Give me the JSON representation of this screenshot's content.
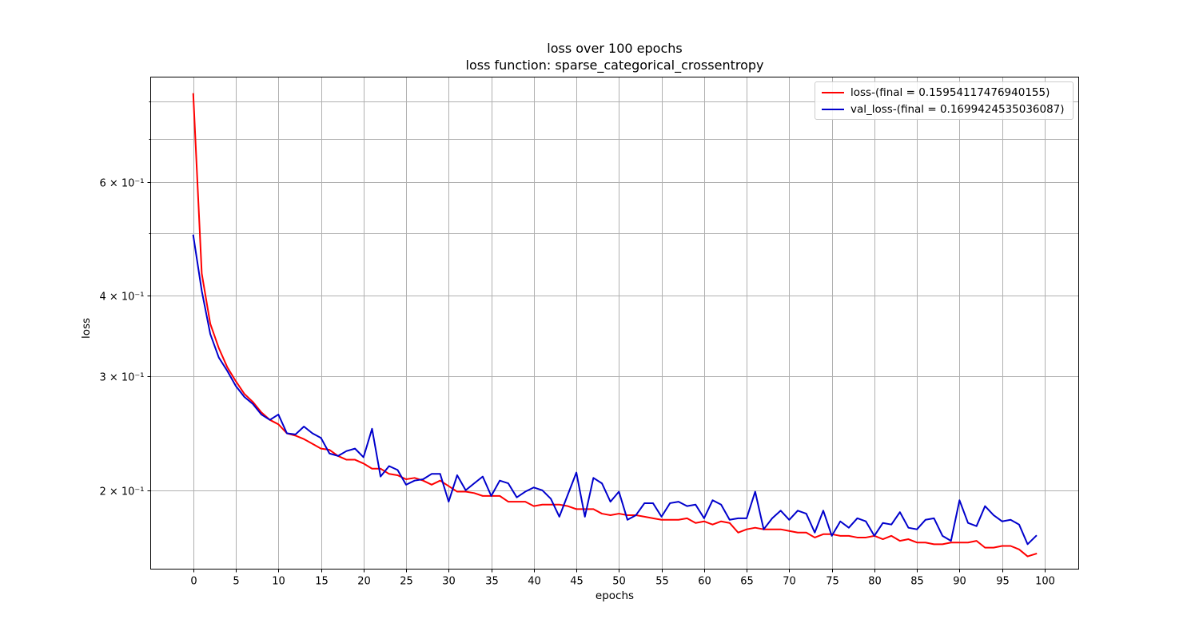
{
  "chart_data": {
    "type": "line",
    "title": "loss over 100 epochs",
    "subtitle": "loss function: sparse_categorical_crossentropy",
    "xlabel": "epochs",
    "ylabel": "loss",
    "yscale": "log",
    "xlim": [
      -5,
      104
    ],
    "ylim": [
      0.151,
      0.872
    ],
    "grid": true,
    "legend_position": "top-right",
    "x_ticks": [
      0,
      5,
      10,
      15,
      20,
      25,
      30,
      35,
      40,
      45,
      50,
      55,
      60,
      65,
      70,
      75,
      80,
      85,
      90,
      95,
      100
    ],
    "y_major_ticks": [
      {
        "value": 0.2,
        "label": "2 × 10⁻¹"
      },
      {
        "value": 0.3,
        "label": "3 × 10⁻¹"
      },
      {
        "value": 0.4,
        "label": "4 × 10⁻¹"
      },
      {
        "value": 0.6,
        "label": "6 × 10⁻¹"
      }
    ],
    "y_minor_ticks": [
      0.5,
      0.7,
      0.8
    ],
    "series": [
      {
        "name": "loss-(final = 0.15954117476940155)",
        "color": "#ff0000",
        "values": [
          0.821,
          0.433,
          0.362,
          0.332,
          0.31,
          0.295,
          0.282,
          0.274,
          0.264,
          0.257,
          0.253,
          0.245,
          0.243,
          0.24,
          0.236,
          0.232,
          0.231,
          0.226,
          0.223,
          0.223,
          0.22,
          0.216,
          0.216,
          0.212,
          0.211,
          0.208,
          0.209,
          0.207,
          0.204,
          0.207,
          0.203,
          0.199,
          0.199,
          0.198,
          0.196,
          0.196,
          0.196,
          0.192,
          0.192,
          0.192,
          0.189,
          0.19,
          0.19,
          0.19,
          0.189,
          0.187,
          0.187,
          0.187,
          0.184,
          0.183,
          0.184,
          0.183,
          0.183,
          0.182,
          0.181,
          0.18,
          0.18,
          0.18,
          0.181,
          0.178,
          0.179,
          0.177,
          0.179,
          0.178,
          0.172,
          0.174,
          0.175,
          0.174,
          0.174,
          0.174,
          0.173,
          0.172,
          0.172,
          0.169,
          0.171,
          0.171,
          0.17,
          0.17,
          0.169,
          0.169,
          0.17,
          0.168,
          0.17,
          0.167,
          0.168,
          0.166,
          0.166,
          0.165,
          0.165,
          0.166,
          0.166,
          0.166,
          0.167,
          0.163,
          0.163,
          0.164,
          0.164,
          0.162,
          0.158,
          0.1595
        ]
      },
      {
        "name": "val_loss-(final = 0.1699424535036087)",
        "color": "#0000cc",
        "values": [
          0.496,
          0.407,
          0.349,
          0.321,
          0.306,
          0.29,
          0.279,
          0.272,
          0.262,
          0.257,
          0.262,
          0.245,
          0.244,
          0.251,
          0.245,
          0.241,
          0.228,
          0.226,
          0.23,
          0.232,
          0.225,
          0.249,
          0.21,
          0.218,
          0.215,
          0.204,
          0.207,
          0.208,
          0.212,
          0.212,
          0.192,
          0.211,
          0.2,
          0.205,
          0.21,
          0.196,
          0.207,
          0.205,
          0.195,
          0.199,
          0.202,
          0.2,
          0.194,
          0.182,
          0.197,
          0.213,
          0.182,
          0.209,
          0.205,
          0.192,
          0.199,
          0.18,
          0.183,
          0.191,
          0.191,
          0.182,
          0.191,
          0.192,
          0.189,
          0.19,
          0.181,
          0.193,
          0.19,
          0.18,
          0.181,
          0.181,
          0.199,
          0.174,
          0.181,
          0.186,
          0.18,
          0.186,
          0.184,
          0.172,
          0.186,
          0.17,
          0.179,
          0.175,
          0.181,
          0.179,
          0.17,
          0.178,
          0.177,
          0.185,
          0.175,
          0.174,
          0.18,
          0.181,
          0.17,
          0.167,
          0.193,
          0.178,
          0.176,
          0.189,
          0.183,
          0.179,
          0.18,
          0.177,
          0.165,
          0.17
        ]
      }
    ]
  }
}
